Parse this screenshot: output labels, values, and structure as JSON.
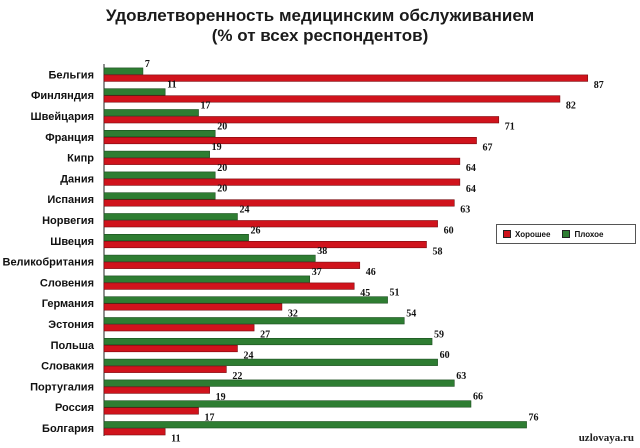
{
  "chart_data": {
    "type": "bar",
    "orientation": "horizontal",
    "title_line1": "Удовлетворенность медицинским обслуживанием",
    "title_line2": "(% от всех респондентов)",
    "xlabel": "",
    "ylabel": "",
    "xlim": [
      0,
      100
    ],
    "grid": false,
    "legend_position": "right",
    "categories": [
      "Бельгия",
      "Финляндия",
      "Швейцария",
      "Франция",
      "Кипр",
      "Дания",
      "Испания",
      "Норвегия",
      "Швеция",
      "Великобритания",
      "Словения",
      "Германия",
      "Эстония",
      "Польша",
      "Словакия",
      "Португалия",
      "Россия",
      "Болгария"
    ],
    "series": [
      {
        "name": "Хорошее",
        "color": "#d0131c",
        "values": [
          87,
          82,
          71,
          67,
          64,
          64,
          63,
          60,
          58,
          46,
          45,
          32,
          27,
          24,
          22,
          19,
          17,
          11
        ]
      },
      {
        "name": "Плохое",
        "color": "#2e7d32",
        "values": [
          7,
          11,
          17,
          20,
          19,
          20,
          20,
          24,
          26,
          38,
          37,
          51,
          54,
          59,
          60,
          63,
          66,
          76
        ]
      }
    ]
  },
  "watermark": "uzlovaya.ru"
}
